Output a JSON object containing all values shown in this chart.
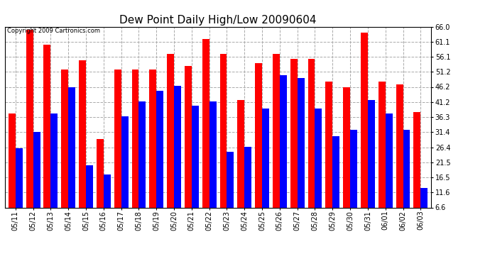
{
  "title": "Dew Point Daily High/Low 20090604",
  "copyright": "Copyright 2009 Cartronics.com",
  "dates": [
    "05/11",
    "05/12",
    "05/13",
    "05/14",
    "05/15",
    "05/16",
    "05/17",
    "05/18",
    "05/19",
    "05/20",
    "05/21",
    "05/22",
    "05/23",
    "05/24",
    "05/25",
    "05/26",
    "05/27",
    "05/28",
    "05/29",
    "05/30",
    "05/31",
    "06/01",
    "06/02",
    "06/03"
  ],
  "highs": [
    37.5,
    65.0,
    60.0,
    52.0,
    55.0,
    29.0,
    52.0,
    52.0,
    52.0,
    57.0,
    53.0,
    62.0,
    57.0,
    42.0,
    54.0,
    57.0,
    55.5,
    55.5,
    48.0,
    46.0,
    64.0,
    48.0,
    47.0,
    38.0
  ],
  "lows": [
    26.0,
    31.5,
    37.5,
    46.0,
    20.5,
    17.5,
    36.5,
    41.5,
    45.0,
    46.5,
    40.0,
    41.5,
    25.0,
    26.5,
    39.0,
    50.0,
    49.0,
    39.0,
    30.0,
    32.0,
    42.0,
    37.5,
    32.0,
    13.0
  ],
  "bar_color_high": "#ff0000",
  "bar_color_low": "#0000ff",
  "background_color": "#ffffff",
  "grid_color": "#aaaaaa",
  "ylim_min": 6.6,
  "ylim_max": 66.0,
  "yticks": [
    6.6,
    11.6,
    16.5,
    21.5,
    26.4,
    31.4,
    36.3,
    41.2,
    46.2,
    51.2,
    56.1,
    61.1,
    66.0
  ],
  "ytick_labels": [
    "6.6",
    "11.6",
    "16.5",
    "21.5",
    "26.4",
    "31.4",
    "36.3",
    "41.2",
    "46.2",
    "51.2",
    "56.1",
    "61.1",
    "66.0"
  ],
  "title_fontsize": 11,
  "tick_fontsize": 7,
  "bar_width": 0.4,
  "figsize": [
    6.9,
    3.75
  ],
  "dpi": 100
}
